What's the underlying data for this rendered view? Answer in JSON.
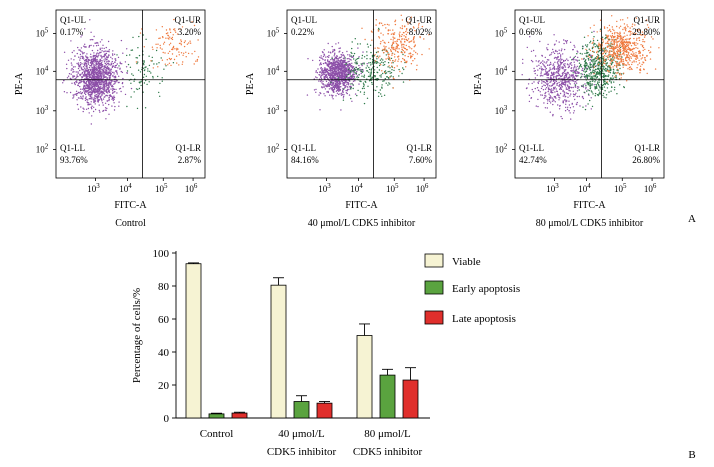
{
  "panel_labels": {
    "a": "A",
    "b": "B"
  },
  "colors": {
    "viable": "#f6f3d3",
    "early": "#5aa33f",
    "late": "#e02f2c",
    "pts_ll": "#8c4fa8",
    "pts_lr": "#2f7a4a",
    "pts_ur": "#ef7a3f",
    "pts_ul": "#a06cc0"
  },
  "flow": {
    "xlabel": "FITC-A",
    "ylabel": "PE-A",
    "tick_base": "10",
    "x_exps": [
      "3",
      "4",
      "5",
      "6"
    ],
    "y_exps": [
      "2",
      "3",
      "4",
      "5"
    ],
    "panels": [
      {
        "condition": "Control",
        "quadrants": [
          {
            "name": "Q1-UL",
            "value": "0.17%"
          },
          {
            "name": "Q1-UR",
            "value": "3.20%"
          },
          {
            "name": "Q1-LL",
            "value": "93.76%"
          },
          {
            "name": "Q1-LR",
            "value": "2.87%"
          }
        ]
      },
      {
        "condition": "40 μmol/L CDK5 inhibitor",
        "quadrants": [
          {
            "name": "Q1-UL",
            "value": "0.22%"
          },
          {
            "name": "Q1-UR",
            "value": "8.02%"
          },
          {
            "name": "Q1-LL",
            "value": "84.16%"
          },
          {
            "name": "Q1-LR",
            "value": "7.60%"
          }
        ]
      },
      {
        "condition": "80 μmol/L CDK5 inhibitor",
        "quadrants": [
          {
            "name": "Q1-UL",
            "value": "0.66%"
          },
          {
            "name": "Q1-UR",
            "value": "29.80%"
          },
          {
            "name": "Q1-LL",
            "value": "42.74%"
          },
          {
            "name": "Q1-LR",
            "value": "26.80%"
          }
        ]
      }
    ]
  },
  "chart_data": {
    "type": "bar",
    "ylabel": "Percentage of cells/%",
    "ylim": [
      0,
      100
    ],
    "yticks": [
      0,
      20,
      40,
      60,
      80,
      100
    ],
    "categories": [
      {
        "line1": "Control",
        "line2": ""
      },
      {
        "line1": "40 μmol/L",
        "line2": "CDK5 inhibitor"
      },
      {
        "line1": "80 μmol/L",
        "line2": "CDK5 inhibitor"
      }
    ],
    "series": [
      {
        "name": "Viable",
        "color": "#f6f3d3",
        "values": [
          93.5,
          80.5,
          50.0
        ],
        "errors": [
          0.5,
          4.5,
          7.0
        ]
      },
      {
        "name": "Early apoptosis",
        "color": "#5aa33f",
        "values": [
          2.5,
          10.0,
          26.0
        ],
        "errors": [
          0.4,
          3.5,
          3.5
        ]
      },
      {
        "name": "Late apoptosis",
        "color": "#e02f2c",
        "values": [
          3.0,
          9.0,
          23.0
        ],
        "errors": [
          0.5,
          1.0,
          7.5
        ]
      }
    ]
  }
}
